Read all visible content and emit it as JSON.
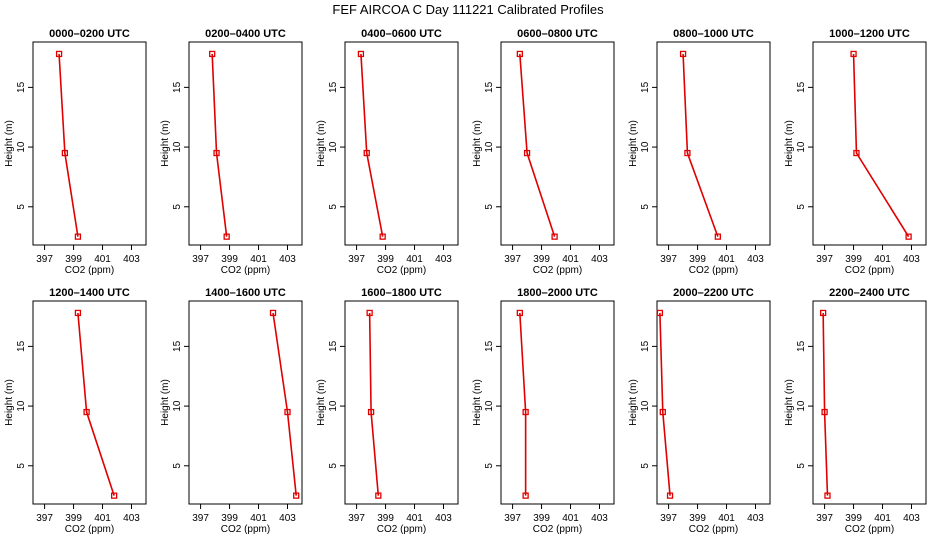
{
  "figure": {
    "title": "FEF AIRCOA C  Day 111221  Calibrated Profiles"
  },
  "colors": {
    "series": "#e00000",
    "axes": "#000000"
  },
  "chart_data": [
    {
      "type": "line",
      "title": "0000–0200 UTC",
      "xlabel": "CO2 (ppm)",
      "ylabel": "Height (m)",
      "xlim": [
        396.2,
        404.0
      ],
      "ylim": [
        1.8,
        18.8
      ],
      "xticks": [
        397,
        399,
        401,
        403
      ],
      "yticks": [
        5,
        10,
        15
      ],
      "grid": false,
      "series": [
        {
          "x": [
            399.3,
            398.4,
            398.0
          ],
          "y": [
            2.5,
            9.5,
            17.8
          ]
        }
      ]
    },
    {
      "type": "line",
      "title": "0200–0400 UTC",
      "xlabel": "CO2 (ppm)",
      "ylabel": "Height (m)",
      "xlim": [
        396.2,
        404.0
      ],
      "ylim": [
        1.8,
        18.8
      ],
      "xticks": [
        397,
        399,
        401,
        403
      ],
      "yticks": [
        5,
        10,
        15
      ],
      "grid": false,
      "series": [
        {
          "x": [
            398.8,
            398.1,
            397.8
          ],
          "y": [
            2.5,
            9.5,
            17.8
          ]
        }
      ]
    },
    {
      "type": "line",
      "title": "0400–0600 UTC",
      "xlabel": "CO2 (ppm)",
      "ylabel": "Height (m)",
      "xlim": [
        396.2,
        404.0
      ],
      "ylim": [
        1.8,
        18.8
      ],
      "xticks": [
        397,
        399,
        401,
        403
      ],
      "yticks": [
        5,
        10,
        15
      ],
      "grid": false,
      "series": [
        {
          "x": [
            398.8,
            397.7,
            397.3
          ],
          "y": [
            2.5,
            9.5,
            17.8
          ]
        }
      ]
    },
    {
      "type": "line",
      "title": "0600–0800 UTC",
      "xlabel": "CO2 (ppm)",
      "ylabel": "Height (m)",
      "xlim": [
        396.2,
        404.0
      ],
      "ylim": [
        1.8,
        18.8
      ],
      "xticks": [
        397,
        399,
        401,
        403
      ],
      "yticks": [
        5,
        10,
        15
      ],
      "grid": false,
      "series": [
        {
          "x": [
            399.9,
            398.0,
            397.5
          ],
          "y": [
            2.5,
            9.5,
            17.8
          ]
        }
      ]
    },
    {
      "type": "line",
      "title": "0800–1000 UTC",
      "xlabel": "CO2 (ppm)",
      "ylabel": "Height (m)",
      "xlim": [
        396.2,
        404.0
      ],
      "ylim": [
        1.8,
        18.8
      ],
      "xticks": [
        397,
        399,
        401,
        403
      ],
      "yticks": [
        5,
        10,
        15
      ],
      "grid": false,
      "series": [
        {
          "x": [
            400.4,
            398.3,
            398.0
          ],
          "y": [
            2.5,
            9.5,
            17.8
          ]
        }
      ]
    },
    {
      "type": "line",
      "title": "1000–1200 UTC",
      "xlabel": "CO2 (ppm)",
      "ylabel": "Height (m)",
      "xlim": [
        396.2,
        404.0
      ],
      "ylim": [
        1.8,
        18.8
      ],
      "xticks": [
        397,
        399,
        401,
        403
      ],
      "yticks": [
        5,
        10,
        15
      ],
      "grid": false,
      "series": [
        {
          "x": [
            402.8,
            399.2,
            399.0
          ],
          "y": [
            2.5,
            9.5,
            17.8
          ]
        }
      ]
    },
    {
      "type": "line",
      "title": "1200–1400 UTC",
      "xlabel": "CO2 (ppm)",
      "ylabel": "Height (m)",
      "xlim": [
        396.2,
        404.0
      ],
      "ylim": [
        1.8,
        18.8
      ],
      "xticks": [
        397,
        399,
        401,
        403
      ],
      "yticks": [
        5,
        10,
        15
      ],
      "grid": false,
      "series": [
        {
          "x": [
            401.8,
            399.9,
            399.3
          ],
          "y": [
            2.5,
            9.5,
            17.8
          ]
        }
      ]
    },
    {
      "type": "line",
      "title": "1400–1600 UTC",
      "xlabel": "CO2 (ppm)",
      "ylabel": "Height (m)",
      "xlim": [
        396.2,
        404.0
      ],
      "ylim": [
        1.8,
        18.8
      ],
      "xticks": [
        397,
        399,
        401,
        403
      ],
      "yticks": [
        5,
        10,
        15
      ],
      "grid": false,
      "series": [
        {
          "x": [
            403.6,
            403.0,
            402.0
          ],
          "y": [
            2.5,
            9.5,
            17.8
          ]
        }
      ]
    },
    {
      "type": "line",
      "title": "1600–1800 UTC",
      "xlabel": "CO2 (ppm)",
      "ylabel": "Height (m)",
      "xlim": [
        396.2,
        404.0
      ],
      "ylim": [
        1.8,
        18.8
      ],
      "xticks": [
        397,
        399,
        401,
        403
      ],
      "yticks": [
        5,
        10,
        15
      ],
      "grid": false,
      "series": [
        {
          "x": [
            398.5,
            398.0,
            397.9
          ],
          "y": [
            2.5,
            9.5,
            17.8
          ]
        }
      ]
    },
    {
      "type": "line",
      "title": "1800–2000 UTC",
      "xlabel": "CO2 (ppm)",
      "ylabel": "Height (m)",
      "xlim": [
        396.2,
        404.0
      ],
      "ylim": [
        1.8,
        18.8
      ],
      "xticks": [
        397,
        399,
        401,
        403
      ],
      "yticks": [
        5,
        10,
        15
      ],
      "grid": false,
      "series": [
        {
          "x": [
            397.9,
            397.9,
            397.5
          ],
          "y": [
            2.5,
            9.5,
            17.8
          ]
        }
      ]
    },
    {
      "type": "line",
      "title": "2000–2200 UTC",
      "xlabel": "CO2 (ppm)",
      "ylabel": "Height (m)",
      "xlim": [
        396.2,
        404.0
      ],
      "ylim": [
        1.8,
        18.8
      ],
      "xticks": [
        397,
        399,
        401,
        403
      ],
      "yticks": [
        5,
        10,
        15
      ],
      "grid": false,
      "series": [
        {
          "x": [
            397.1,
            396.6,
            396.4
          ],
          "y": [
            2.5,
            9.5,
            17.8
          ]
        }
      ]
    },
    {
      "type": "line",
      "title": "2200–2400 UTC",
      "xlabel": "CO2 (ppm)",
      "ylabel": "Height (m)",
      "xlim": [
        396.2,
        404.0
      ],
      "ylim": [
        1.8,
        18.8
      ],
      "xticks": [
        397,
        399,
        401,
        403
      ],
      "yticks": [
        5,
        10,
        15
      ],
      "grid": false,
      "series": [
        {
          "x": [
            397.2,
            397.0,
            396.9
          ],
          "y": [
            2.5,
            9.5,
            17.8
          ]
        }
      ]
    }
  ]
}
